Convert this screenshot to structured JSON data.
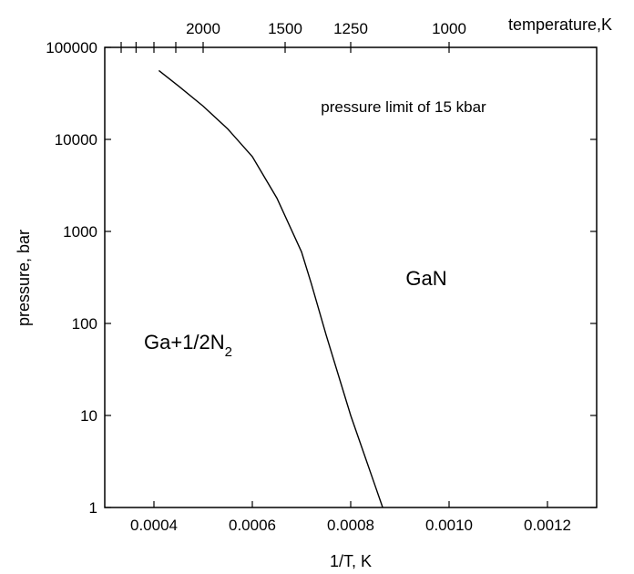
{
  "chart_data": {
    "type": "line",
    "x_scale": "linear",
    "y_scale": "log",
    "xlim": [
      0.0003,
      0.0013
    ],
    "ylim": [
      1,
      100000
    ],
    "x_ticks": [
      0.0004,
      0.0006,
      0.0008,
      0.001,
      0.0012
    ],
    "x_tick_labels": [
      "0.0004",
      "0.0006",
      "0.0008",
      "0.0010",
      "0.0012"
    ],
    "y_ticks": [
      1,
      10,
      100,
      1000,
      10000,
      100000
    ],
    "y_tick_labels": [
      "1",
      "10",
      "100",
      "1000",
      "10000",
      "100000"
    ],
    "xlabel": "1/T, K",
    "ylabel": "pressure, bar",
    "top_axis": {
      "label": "temperature,K",
      "ticks_K": [
        2000,
        1500,
        1250,
        1000
      ],
      "tick_labels": [
        "2000",
        "1500",
        "1250",
        "1000"
      ],
      "minor_ticks_K": [
        3000,
        2750,
        2500,
        2250
      ]
    },
    "series": [
      {
        "points": [
          [
            0.00041,
            56000
          ],
          [
            0.00045,
            38000
          ],
          [
            0.0005,
            23000
          ],
          [
            0.00055,
            13000
          ],
          [
            0.0006,
            6500
          ],
          [
            0.00065,
            2300
          ],
          [
            0.0007,
            600
          ],
          [
            0.00072,
            270
          ],
          [
            0.00075,
            75
          ],
          [
            0.0008,
            10
          ],
          [
            0.00085,
            1.7
          ],
          [
            0.000865,
            1
          ]
        ]
      }
    ],
    "annotations": [
      {
        "text": "pressure limit of 15 kbar",
        "x": 0.00095,
        "y": 40000
      },
      {
        "text": "GaN",
        "x": 0.00098,
        "y": 500
      },
      {
        "text": "Ga+1/2N",
        "subscript": "2",
        "x": 0.00045,
        "y": 60
      }
    ],
    "grid": false,
    "legend": "none"
  }
}
